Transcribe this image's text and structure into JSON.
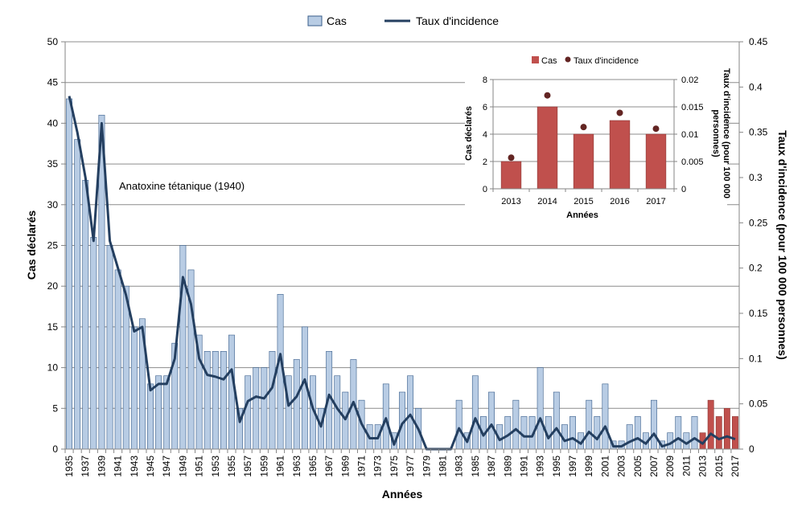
{
  "chart_data": {
    "type": "bar",
    "xlabel": "Années",
    "ylabel": "Cas déclarés",
    "y2label": "Taux d'incidence (pour 100 000 personnes)",
    "ylim": [
      0,
      50
    ],
    "y2lim": [
      0,
      0.45
    ],
    "yticks": [
      "0",
      "5",
      "10",
      "15",
      "20",
      "25",
      "30",
      "35",
      "40",
      "45",
      "50"
    ],
    "y2ticks": [
      "0",
      "0.05",
      "0.1",
      "0.15",
      "0.2",
      "0.25",
      "0.3",
      "0.35",
      "0.4",
      "0.45"
    ],
    "grid": true,
    "legend_position": "top-center",
    "annotation": "Anatoxine tétanique (1940)",
    "years": [
      1935,
      1936,
      1937,
      1938,
      1939,
      1940,
      1941,
      1942,
      1943,
      1944,
      1945,
      1946,
      1947,
      1948,
      1949,
      1950,
      1951,
      1952,
      1953,
      1954,
      1955,
      1956,
      1957,
      1958,
      1959,
      1960,
      1961,
      1962,
      1963,
      1964,
      1965,
      1966,
      1967,
      1968,
      1969,
      1970,
      1971,
      1972,
      1973,
      1974,
      1975,
      1976,
      1977,
      1978,
      1979,
      1980,
      1981,
      1982,
      1983,
      1984,
      1985,
      1986,
      1987,
      1988,
      1989,
      1990,
      1991,
      1992,
      1993,
      1994,
      1995,
      1996,
      1997,
      1998,
      1999,
      2000,
      2001,
      2002,
      2003,
      2004,
      2005,
      2006,
      2007,
      2008,
      2009,
      2010,
      2011,
      2012,
      2013,
      2014,
      2015,
      2016,
      2017
    ],
    "series": [
      {
        "name": "Cas",
        "type": "bar",
        "axis": "left",
        "color": "#b8cce4",
        "highlight_color": "#c0504d",
        "highlight_from_year": 2013,
        "values": [
          43,
          38,
          33,
          26,
          41,
          25,
          22,
          20,
          15,
          16,
          8,
          9,
          9,
          13,
          25,
          22,
          14,
          12,
          12,
          12,
          14,
          5,
          9,
          10,
          10,
          12,
          19,
          9,
          11,
          15,
          9,
          5,
          12,
          9,
          7,
          11,
          6,
          3,
          3,
          8,
          2,
          7,
          9,
          5,
          0,
          0,
          0,
          0,
          6,
          2,
          9,
          4,
          7,
          3,
          4,
          6,
          4,
          4,
          10,
          4,
          7,
          3,
          4,
          2,
          6,
          4,
          8,
          1,
          1,
          3,
          4,
          2,
          6,
          1,
          2,
          4,
          2,
          4,
          2,
          6,
          4,
          5,
          4
        ]
      },
      {
        "name": "Taux d'incidence",
        "type": "line",
        "axis": "right",
        "color": "#243f60",
        "values": [
          0.39,
          0.35,
          0.3,
          0.23,
          0.36,
          0.23,
          0.2,
          0.17,
          0.13,
          0.135,
          0.065,
          0.072,
          0.072,
          0.1,
          0.19,
          0.16,
          0.1,
          0.082,
          0.08,
          0.077,
          0.088,
          0.03,
          0.053,
          0.058,
          0.056,
          0.068,
          0.105,
          0.048,
          0.058,
          0.077,
          0.045,
          0.025,
          0.06,
          0.045,
          0.033,
          0.052,
          0.028,
          0.012,
          0.012,
          0.034,
          0.005,
          0.028,
          0.038,
          0.022,
          0,
          0,
          0,
          0,
          0.023,
          0.008,
          0.034,
          0.015,
          0.027,
          0.01,
          0.015,
          0.022,
          0.014,
          0.014,
          0.034,
          0.012,
          0.023,
          0.009,
          0.012,
          0.006,
          0.019,
          0.011,
          0.025,
          0.003,
          0.003,
          0.008,
          0.012,
          0.006,
          0.017,
          0.003,
          0.006,
          0.012,
          0.006,
          0.012,
          0.006,
          0.017,
          0.011,
          0.014,
          0.011
        ]
      }
    ],
    "inset": {
      "type": "bar",
      "xlabel": "Années",
      "ylabel": "Cas déclarés",
      "y2label_lines": [
        "Taux d'incidence (pour 100 000",
        "personnes)"
      ],
      "ylim": [
        0,
        8
      ],
      "y2lim": [
        0,
        0.02
      ],
      "yticks": [
        "0",
        "2",
        "4",
        "6",
        "8"
      ],
      "y2ticks": [
        "0",
        "0.005",
        "0.01",
        "0.015",
        "0.02"
      ],
      "categories": [
        "2013",
        "2014",
        "2015",
        "2016",
        "2017"
      ],
      "series": [
        {
          "name": "Cas",
          "type": "bar",
          "color": "#c0504d",
          "values": [
            2,
            6,
            4,
            5,
            4
          ]
        },
        {
          "name": "Taux d'incidence",
          "type": "scatter",
          "color": "#632523",
          "values": [
            0.0057,
            0.0171,
            0.0113,
            0.0139,
            0.011
          ]
        }
      ]
    }
  }
}
